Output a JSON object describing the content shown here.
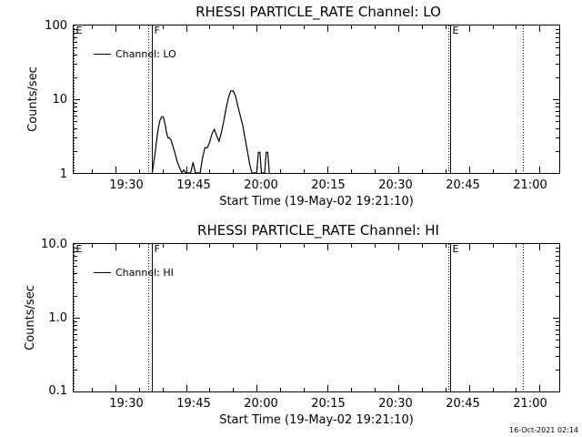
{
  "chart_data": [
    {
      "type": "line",
      "title": "RHESSI PARTICLE_RATE Channel: LO",
      "xlabel": "Start Time (19-May-02 19:21:10)",
      "ylabel": "Counts/sec",
      "yscale": "log",
      "ylim": [
        1,
        100
      ],
      "xlim": [
        "19:21:10",
        "21:04:10"
      ],
      "x_ticks": [
        "19:30",
        "19:45",
        "20:00",
        "20:15",
        "20:30",
        "20:45",
        "21:00"
      ],
      "y_ticks": [
        "1",
        "10",
        "100"
      ],
      "grid": false,
      "legend": {
        "placement": "top-left",
        "entries": [
          "Channel: LO"
        ]
      },
      "series": [
        {
          "name": "Channel: LO",
          "x": [
            "19:37:50",
            "19:38:10",
            "19:38:30",
            "19:38:50",
            "19:39:10",
            "19:39:30",
            "19:39:50",
            "19:40:10",
            "19:40:30",
            "19:40:50",
            "19:41:10",
            "19:41:30",
            "19:41:50",
            "19:42:30",
            "19:43:10",
            "19:43:50",
            "19:44:10",
            "19:44:30",
            "19:45:00",
            "19:46:00",
            "19:46:30",
            "19:47:00",
            "19:48:00",
            "19:48:30",
            "19:49:00",
            "19:49:30",
            "19:50:00",
            "19:50:30",
            "19:51:00",
            "19:51:30",
            "19:52:00",
            "19:52:30",
            "19:53:00",
            "19:53:30",
            "19:54:00",
            "19:54:30",
            "19:55:00",
            "19:55:30",
            "19:56:00",
            "19:56:30",
            "19:57:00",
            "19:57:30",
            "19:58:00",
            "19:58:30",
            "19:59:00",
            "20:00:00",
            "20:00:20",
            "20:00:40",
            "20:01:00",
            "20:01:40",
            "20:02:00",
            "20:02:20",
            "20:02:40"
          ],
          "values": [
            1.0,
            1.4,
            2.0,
            3.0,
            4.2,
            5.2,
            5.8,
            5.8,
            4.8,
            3.6,
            3.0,
            3.0,
            2.8,
            2.0,
            1.4,
            1.1,
            1.0,
            1.1,
            1.0,
            1.0,
            1.4,
            1.0,
            1.0,
            1.6,
            2.2,
            2.2,
            2.6,
            3.4,
            3.9,
            3.2,
            2.7,
            3.5,
            5.0,
            7.5,
            10.5,
            13.0,
            13.0,
            11.0,
            8.0,
            6.0,
            4.5,
            3.0,
            2.0,
            1.3,
            1.0,
            1.0,
            1.9,
            1.9,
            1.0,
            1.0,
            1.9,
            1.9,
            1.0
          ]
        }
      ],
      "markers": [
        {
          "label": "E",
          "time": "19:21:10",
          "style": "dotted"
        },
        {
          "label": "F",
          "time": "19:37:00",
          "style": "dotted"
        },
        {
          "label": "F",
          "time": "19:37:40",
          "style": "solid"
        },
        {
          "label": "E",
          "time": "20:40:40",
          "style": "dotted"
        },
        {
          "label": "E",
          "time": "20:41:00",
          "style": "solid"
        },
        {
          "label": "",
          "time": "20:56:30",
          "style": "dotted"
        }
      ]
    },
    {
      "type": "line",
      "title": "RHESSI PARTICLE_RATE Channel: HI",
      "xlabel": "Start Time (19-May-02 19:21:10)",
      "ylabel": "Counts/sec",
      "yscale": "log",
      "ylim": [
        0.1,
        10
      ],
      "xlim": [
        "19:21:10",
        "21:04:10"
      ],
      "x_ticks": [
        "19:30",
        "19:45",
        "20:00",
        "20:15",
        "20:30",
        "20:45",
        "21:00"
      ],
      "y_ticks": [
        "0.1",
        "1.0",
        "10.0"
      ],
      "grid": false,
      "legend": {
        "placement": "top-left",
        "entries": [
          "Channel: HI"
        ]
      },
      "series": [
        {
          "name": "Channel: HI",
          "x": [],
          "values": []
        }
      ],
      "markers": [
        {
          "label": "E",
          "time": "19:21:10",
          "style": "dotted"
        },
        {
          "label": "F",
          "time": "19:37:00",
          "style": "dotted"
        },
        {
          "label": "F",
          "time": "19:37:40",
          "style": "solid"
        },
        {
          "label": "E",
          "time": "20:40:40",
          "style": "dotted"
        },
        {
          "label": "E",
          "time": "20:41:00",
          "style": "solid"
        },
        {
          "label": "",
          "time": "20:56:30",
          "style": "dotted"
        }
      ]
    }
  ],
  "footer": {
    "timestamp": "16-Oct-2021 02:14"
  }
}
